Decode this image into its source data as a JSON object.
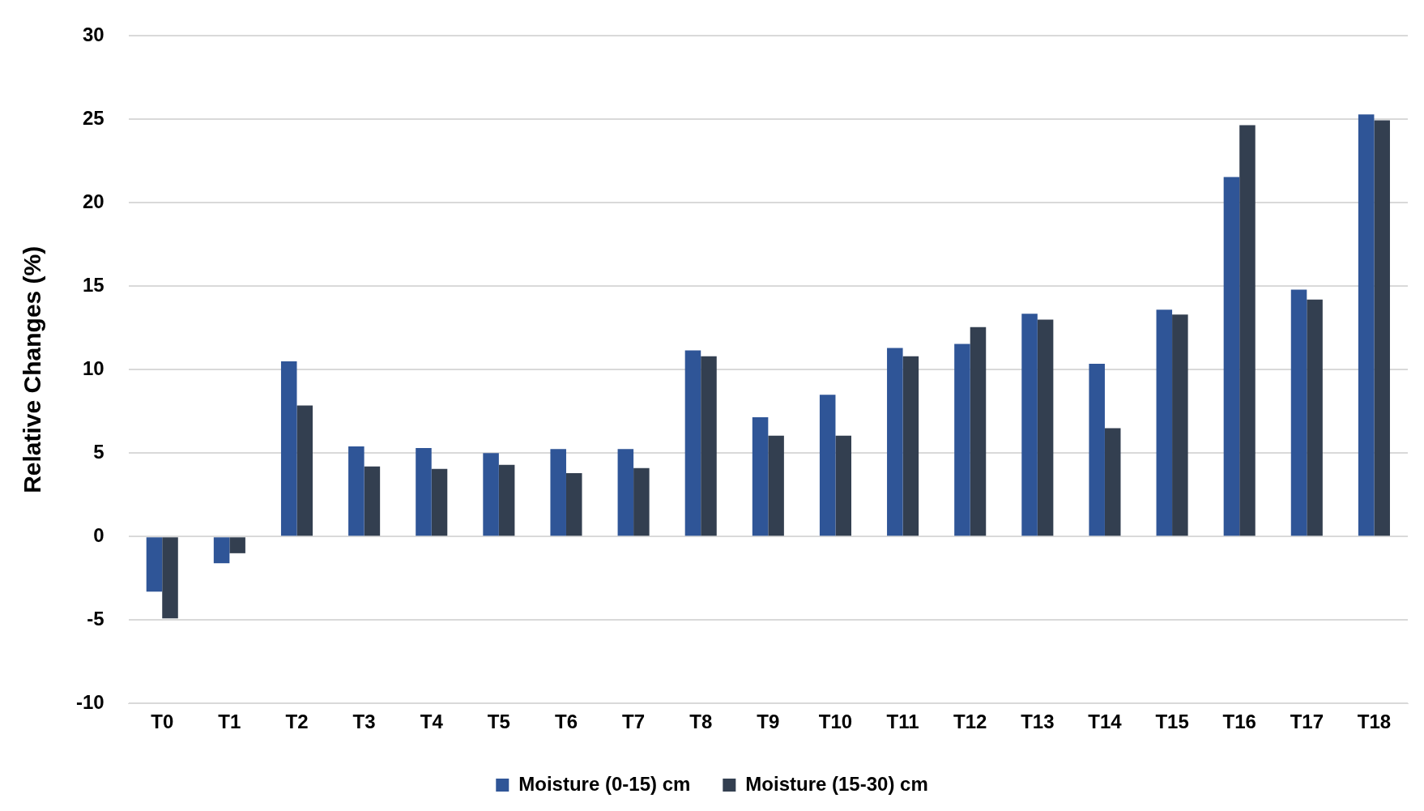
{
  "chart_data": {
    "type": "bar",
    "ylabel": "Relative Changes (%)",
    "categories": [
      "T0",
      "T1",
      "T2",
      "T3",
      "T4",
      "T5",
      "T6",
      "T7",
      "T8",
      "T9",
      "T10",
      "T11",
      "T12",
      "T13",
      "T14",
      "T15",
      "T16",
      "T17",
      "T18"
    ],
    "series": [
      {
        "name": "Moisture (0-15) cm",
        "color": "#2f5597",
        "values": [
          -3.3,
          -1.6,
          10.5,
          5.4,
          5.3,
          5.0,
          5.25,
          5.25,
          11.15,
          7.15,
          8.5,
          11.3,
          11.55,
          13.35,
          10.35,
          13.6,
          21.55,
          14.8,
          25.3
        ]
      },
      {
        "name": "Moisture (15-30) cm",
        "color": "#333f50",
        "values": [
          -4.9,
          -1.0,
          7.85,
          4.2,
          4.05,
          4.3,
          3.8,
          4.1,
          10.8,
          6.05,
          6.05,
          10.8,
          12.55,
          13.0,
          6.5,
          13.3,
          24.65,
          14.2,
          24.95
        ]
      }
    ],
    "ylim": [
      -10,
      30
    ],
    "yticks": [
      -10,
      -5,
      0,
      5,
      10,
      15,
      20,
      25,
      30
    ],
    "grid": "y",
    "legend": "bottom"
  }
}
